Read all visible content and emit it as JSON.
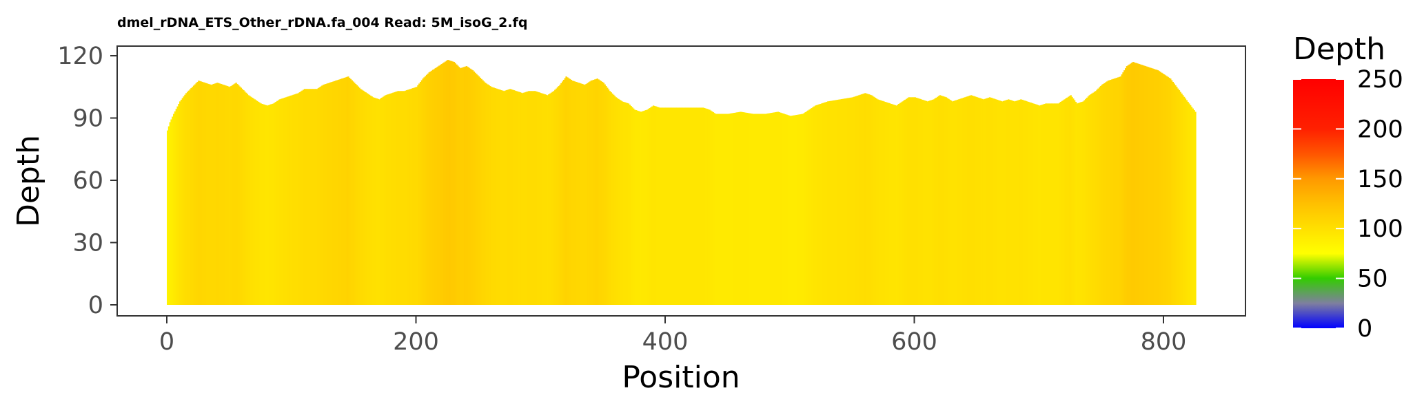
{
  "chart_data": {
    "type": "bar",
    "title": "dmel_rDNA_ETS_Other_rDNA.fa_004 Read: 5M_isoG_2.fq",
    "xlabel": "Position",
    "ylabel": "Depth",
    "xlim": [
      0,
      826
    ],
    "ylim": [
      0,
      120
    ],
    "xticks": [
      0,
      200,
      400,
      600,
      800
    ],
    "yticks": [
      0,
      30,
      60,
      90,
      120
    ],
    "grid": false,
    "color_by": "depth",
    "legend": {
      "title": "Depth",
      "position": "right",
      "range": [
        0,
        250
      ],
      "ticks": [
        0,
        50,
        100,
        150,
        200,
        250
      ],
      "gradient_stops": [
        {
          "value": 0,
          "color": "#0000FF"
        },
        {
          "value": 25,
          "color": "#7F7F9F"
        },
        {
          "value": 50,
          "color": "#33CC00"
        },
        {
          "value": 75,
          "color": "#FFFF00"
        },
        {
          "value": 100,
          "color": "#FFE000"
        },
        {
          "value": 125,
          "color": "#FFC000"
        },
        {
          "value": 150,
          "color": "#FF9900"
        },
        {
          "value": 175,
          "color": "#FF5500"
        },
        {
          "value": 200,
          "color": "#FF2000"
        },
        {
          "value": 250,
          "color": "#FF0000"
        }
      ]
    },
    "profile": [
      [
        0,
        84
      ],
      [
        2,
        88
      ],
      [
        5,
        92
      ],
      [
        10,
        98
      ],
      [
        15,
        102
      ],
      [
        20,
        105
      ],
      [
        25,
        108
      ],
      [
        30,
        107
      ],
      [
        35,
        106
      ],
      [
        40,
        107
      ],
      [
        45,
        106
      ],
      [
        50,
        105
      ],
      [
        55,
        107
      ],
      [
        60,
        104
      ],
      [
        65,
        101
      ],
      [
        70,
        99
      ],
      [
        75,
        97
      ],
      [
        80,
        96
      ],
      [
        85,
        97
      ],
      [
        90,
        99
      ],
      [
        95,
        100
      ],
      [
        100,
        101
      ],
      [
        105,
        102
      ],
      [
        110,
        104
      ],
      [
        115,
        104
      ],
      [
        120,
        104
      ],
      [
        125,
        106
      ],
      [
        130,
        107
      ],
      [
        135,
        108
      ],
      [
        140,
        109
      ],
      [
        145,
        110
      ],
      [
        150,
        107
      ],
      [
        155,
        104
      ],
      [
        160,
        102
      ],
      [
        165,
        100
      ],
      [
        170,
        99
      ],
      [
        175,
        101
      ],
      [
        180,
        102
      ],
      [
        185,
        103
      ],
      [
        190,
        103
      ],
      [
        195,
        104
      ],
      [
        200,
        105
      ],
      [
        205,
        109
      ],
      [
        210,
        112
      ],
      [
        215,
        114
      ],
      [
        220,
        116
      ],
      [
        225,
        118
      ],
      [
        230,
        117
      ],
      [
        235,
        114
      ],
      [
        240,
        115
      ],
      [
        245,
        113
      ],
      [
        250,
        110
      ],
      [
        255,
        107
      ],
      [
        260,
        105
      ],
      [
        265,
        104
      ],
      [
        270,
        103
      ],
      [
        275,
        104
      ],
      [
        280,
        103
      ],
      [
        285,
        102
      ],
      [
        290,
        103
      ],
      [
        295,
        103
      ],
      [
        300,
        102
      ],
      [
        305,
        101
      ],
      [
        310,
        103
      ],
      [
        315,
        106
      ],
      [
        320,
        110
      ],
      [
        325,
        108
      ],
      [
        330,
        107
      ],
      [
        335,
        106
      ],
      [
        340,
        108
      ],
      [
        345,
        109
      ],
      [
        350,
        107
      ],
      [
        355,
        103
      ],
      [
        360,
        100
      ],
      [
        365,
        98
      ],
      [
        370,
        97
      ],
      [
        375,
        94
      ],
      [
        380,
        93
      ],
      [
        385,
        94
      ],
      [
        390,
        96
      ],
      [
        395,
        95
      ],
      [
        400,
        95
      ],
      [
        410,
        95
      ],
      [
        420,
        95
      ],
      [
        430,
        95
      ],
      [
        435,
        94
      ],
      [
        440,
        92
      ],
      [
        450,
        92
      ],
      [
        460,
        93
      ],
      [
        470,
        92
      ],
      [
        480,
        92
      ],
      [
        490,
        93
      ],
      [
        495,
        92
      ],
      [
        500,
        91
      ],
      [
        510,
        92
      ],
      [
        515,
        94
      ],
      [
        520,
        96
      ],
      [
        525,
        97
      ],
      [
        530,
        98
      ],
      [
        540,
        99
      ],
      [
        550,
        100
      ],
      [
        555,
        101
      ],
      [
        560,
        102
      ],
      [
        565,
        101
      ],
      [
        570,
        99
      ],
      [
        575,
        98
      ],
      [
        580,
        97
      ],
      [
        585,
        96
      ],
      [
        590,
        98
      ],
      [
        595,
        100
      ],
      [
        600,
        100
      ],
      [
        605,
        99
      ],
      [
        610,
        98
      ],
      [
        615,
        99
      ],
      [
        620,
        101
      ],
      [
        625,
        100
      ],
      [
        630,
        98
      ],
      [
        635,
        99
      ],
      [
        640,
        100
      ],
      [
        645,
        101
      ],
      [
        650,
        100
      ],
      [
        655,
        99
      ],
      [
        660,
        100
      ],
      [
        665,
        99
      ],
      [
        670,
        98
      ],
      [
        675,
        99
      ],
      [
        680,
        98
      ],
      [
        685,
        99
      ],
      [
        690,
        98
      ],
      [
        695,
        97
      ],
      [
        700,
        96
      ],
      [
        705,
        97
      ],
      [
        710,
        97
      ],
      [
        715,
        97
      ],
      [
        720,
        99
      ],
      [
        725,
        101
      ],
      [
        730,
        97
      ],
      [
        735,
        98
      ],
      [
        740,
        101
      ],
      [
        745,
        103
      ],
      [
        750,
        106
      ],
      [
        755,
        108
      ],
      [
        760,
        109
      ],
      [
        765,
        110
      ],
      [
        770,
        115
      ],
      [
        775,
        117
      ],
      [
        780,
        116
      ],
      [
        785,
        115
      ],
      [
        790,
        114
      ],
      [
        795,
        113
      ],
      [
        800,
        111
      ],
      [
        805,
        109
      ],
      [
        810,
        105
      ],
      [
        815,
        101
      ],
      [
        820,
        97
      ],
      [
        825,
        93
      ]
    ]
  }
}
